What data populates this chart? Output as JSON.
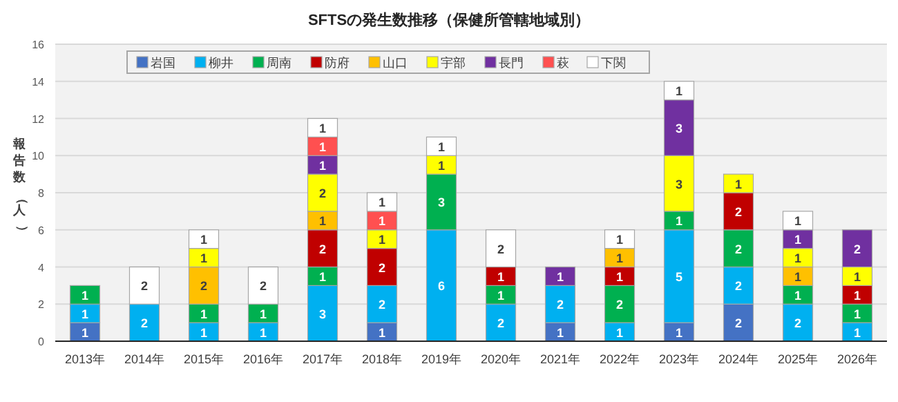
{
  "chart_data": {
    "type": "bar",
    "title": "SFTSの発生数推移（保健所管轄地域別）",
    "ylabel": "報告数（人）",
    "stacked": true,
    "data_labels": true,
    "legend": "top",
    "grid": "y",
    "ylim": [
      0,
      16
    ],
    "yticks": [
      0,
      2,
      4,
      6,
      8,
      10,
      12,
      14,
      16
    ],
    "categories": [
      "2013年",
      "2014年",
      "2015年",
      "2016年",
      "2017年",
      "2018年",
      "2019年",
      "2020年",
      "2021年",
      "2022年",
      "2023年",
      "2024年",
      "2025年",
      "2026年"
    ],
    "series": [
      {
        "name": "岩国",
        "color": "#4472c4",
        "values": [
          1,
          null,
          null,
          null,
          null,
          1,
          null,
          null,
          1,
          null,
          1,
          2,
          null,
          null
        ]
      },
      {
        "name": "柳井",
        "color": "#00b0f0",
        "values": [
          1,
          2,
          1,
          1,
          3,
          2,
          6,
          2,
          2,
          1,
          5,
          2,
          2,
          1
        ]
      },
      {
        "name": "周南",
        "color": "#00b050",
        "values": [
          1,
          null,
          1,
          1,
          1,
          null,
          3,
          1,
          null,
          2,
          1,
          2,
          1,
          1
        ]
      },
      {
        "name": "防府",
        "color": "#c00000",
        "values": [
          null,
          null,
          null,
          null,
          2,
          2,
          null,
          1,
          null,
          1,
          null,
          2,
          null,
          1
        ]
      },
      {
        "name": "山口",
        "color": "#ffc000",
        "values": [
          null,
          null,
          2,
          null,
          1,
          null,
          null,
          null,
          null,
          1,
          null,
          null,
          1,
          null
        ]
      },
      {
        "name": "宇部",
        "color": "#ffff00",
        "values": [
          null,
          null,
          1,
          null,
          2,
          1,
          1,
          null,
          null,
          null,
          3,
          1,
          1,
          1
        ]
      },
      {
        "name": "長門",
        "color": "#7030a0",
        "values": [
          null,
          null,
          null,
          null,
          1,
          null,
          null,
          null,
          1,
          null,
          3,
          null,
          1,
          2
        ]
      },
      {
        "name": "萩",
        "color": "#ff5050",
        "values": [
          null,
          null,
          null,
          null,
          1,
          1,
          null,
          null,
          null,
          null,
          null,
          null,
          null,
          null
        ]
      },
      {
        "name": "下関",
        "color": "#ffffff",
        "values": [
          null,
          2,
          1,
          2,
          1,
          1,
          1,
          2,
          null,
          1,
          1,
          null,
          1,
          null
        ]
      }
    ]
  }
}
